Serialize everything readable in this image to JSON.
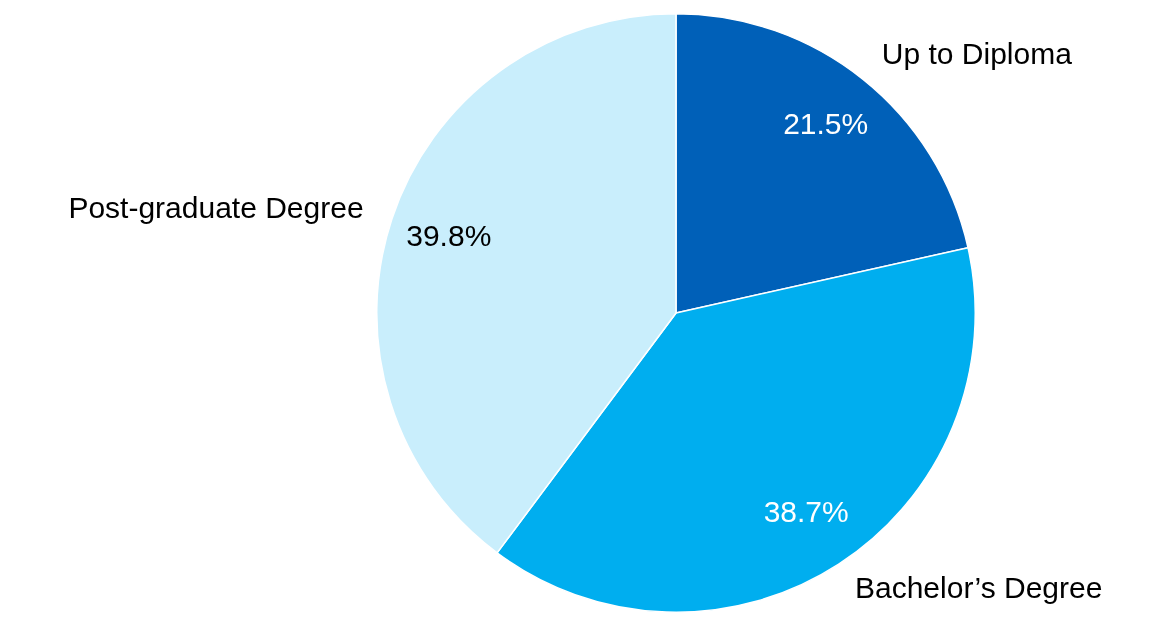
{
  "chart_data": {
    "type": "pie",
    "categories": [
      "Up to Diploma",
      "Bachelor’s Degree",
      "Post-graduate Degree"
    ],
    "values": [
      21.5,
      38.7,
      39.8
    ],
    "colors": [
      "#0060b8",
      "#00aeef",
      "#c9eefc"
    ],
    "value_labels": [
      "21.5%",
      "38.7%",
      "39.8%"
    ],
    "legend": false
  }
}
